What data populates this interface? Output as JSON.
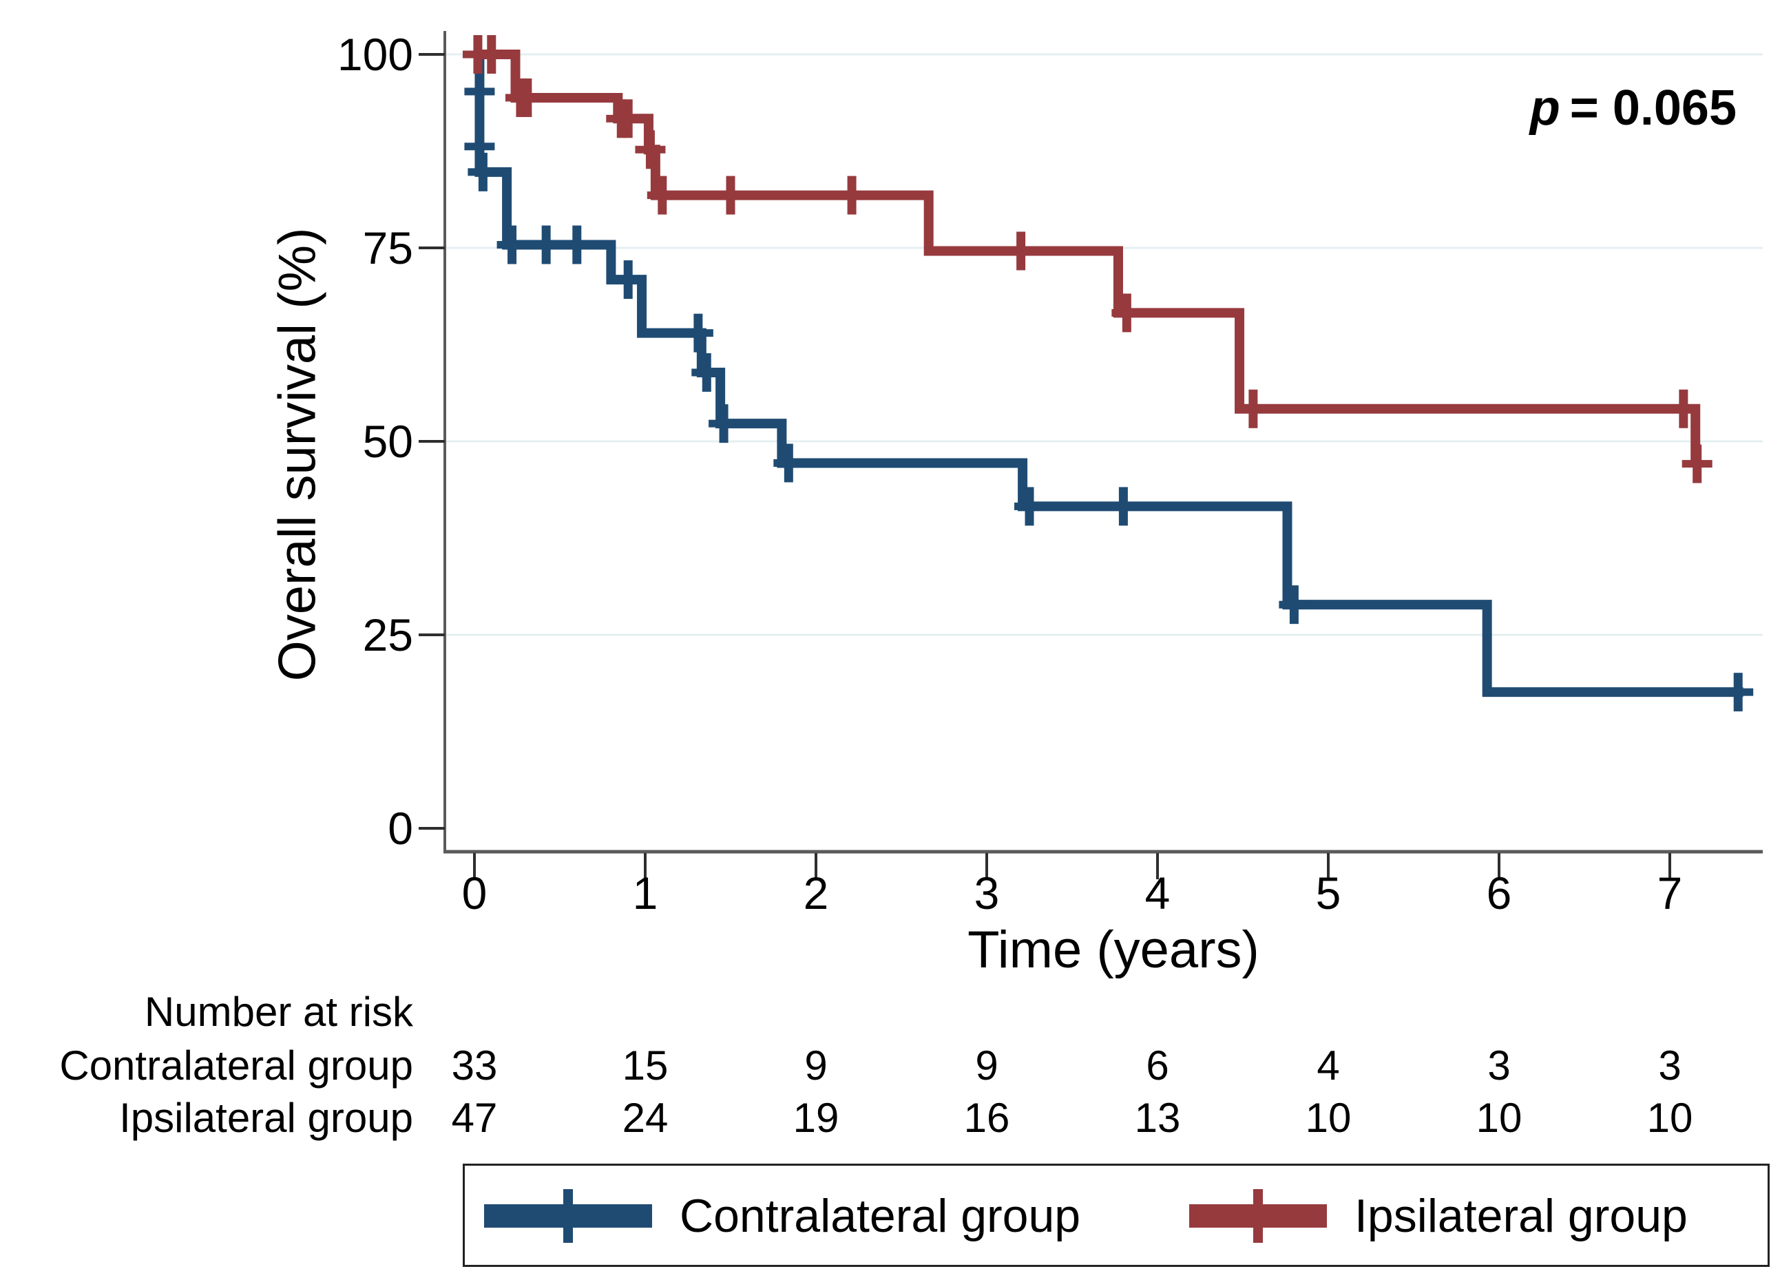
{
  "annotation": {
    "symbol": "p",
    "value": "= 0.065"
  },
  "axes": {
    "x": {
      "label": "Time (years)",
      "tick_labels": [
        "0",
        "1",
        "2",
        "3",
        "4",
        "5",
        "6",
        "7"
      ]
    },
    "y": {
      "label": "Overall survival (%)",
      "tick_labels": [
        "100",
        "75",
        "50",
        "25",
        "0"
      ]
    }
  },
  "risk_table": {
    "title": "Number at risk",
    "rows": [
      {
        "label": "Contralateral group",
        "values": [
          "33",
          "15",
          "9",
          "9",
          "6",
          "4",
          "3",
          "3"
        ]
      },
      {
        "label": "Ipsilateral group",
        "values": [
          "47",
          "24",
          "19",
          "16",
          "13",
          "10",
          "10",
          "10"
        ]
      }
    ]
  },
  "legend": {
    "items": [
      {
        "label": "Contralateral group",
        "color": "#1F4B73"
      },
      {
        "label": "Ipsilateral group",
        "color": "#963A3E"
      }
    ]
  },
  "colors": {
    "contralateral": "#1F4B73",
    "ipsilateral": "#963A3E",
    "gridline": "#E4EFF1",
    "axis": "#5A5A5A",
    "tick": "#2E2E2E",
    "text": "#000000",
    "background": "#FFFFFF"
  },
  "chart_data": {
    "type": "line",
    "subtype": "kaplan-meier-step",
    "title": "",
    "xlabel": "Time (years)",
    "ylabel": "Overall survival (%)",
    "xlim": [
      0,
      7.55
    ],
    "ylim": [
      0,
      100
    ],
    "x_ticks": [
      0,
      1,
      2,
      3,
      4,
      5,
      6,
      7
    ],
    "y_ticks": [
      0,
      25,
      50,
      75,
      100
    ],
    "grid": "horizontal gridlines at 25, 50, 75, 100",
    "annotation": "p = 0.065",
    "legend_position": "bottom",
    "series": [
      {
        "name": "Contralateral group",
        "color": "#1F4B73",
        "n_start": 33,
        "start": [
          0,
          100
        ],
        "end_time": 7.43,
        "steps": [
          [
            0.03,
            84.8
          ],
          [
            0.19,
            75.4
          ],
          [
            0.8,
            70.9
          ],
          [
            0.98,
            64.0
          ],
          [
            1.33,
            58.9
          ],
          [
            1.44,
            52.3
          ],
          [
            1.8,
            47.2
          ],
          [
            3.21,
            41.6
          ],
          [
            4.76,
            28.9
          ],
          [
            5.93,
            17.6
          ]
        ],
        "censor_marks": [
          [
            0.03,
            95.2
          ],
          [
            0.03,
            88.1
          ],
          [
            0.05,
            84.8
          ],
          [
            0.22,
            75.4
          ],
          [
            0.42,
            75.4
          ],
          [
            0.6,
            75.4
          ],
          [
            0.9,
            70.9
          ],
          [
            1.31,
            64.0
          ],
          [
            1.36,
            58.9
          ],
          [
            1.46,
            52.3
          ],
          [
            1.84,
            47.2
          ],
          [
            3.25,
            41.6
          ],
          [
            3.8,
            41.6
          ],
          [
            4.8,
            28.9
          ],
          [
            7.4,
            17.6
          ]
        ]
      },
      {
        "name": "Ipsilateral group",
        "color": "#963A3E",
        "n_start": 47,
        "start": [
          0,
          100
        ],
        "end_time": 7.15,
        "steps": [
          [
            0.24,
            94.4
          ],
          [
            0.84,
            91.7
          ],
          [
            1.02,
            87.7
          ],
          [
            1.06,
            81.8
          ],
          [
            2.66,
            74.6
          ],
          [
            3.77,
            66.6
          ],
          [
            4.48,
            54.2
          ],
          [
            7.15,
            47.1
          ]
        ],
        "censor_marks": [
          [
            0.02,
            100
          ],
          [
            0.1,
            100
          ],
          [
            0.27,
            94.4
          ],
          [
            0.31,
            94.4
          ],
          [
            0.86,
            91.7
          ],
          [
            0.9,
            91.7
          ],
          [
            1.03,
            87.7
          ],
          [
            1.1,
            81.8
          ],
          [
            1.5,
            81.8
          ],
          [
            2.21,
            81.8
          ],
          [
            3.2,
            74.6
          ],
          [
            3.82,
            66.6
          ],
          [
            4.56,
            54.2
          ],
          [
            7.08,
            54.2
          ],
          [
            7.16,
            47.1
          ]
        ]
      }
    ]
  }
}
